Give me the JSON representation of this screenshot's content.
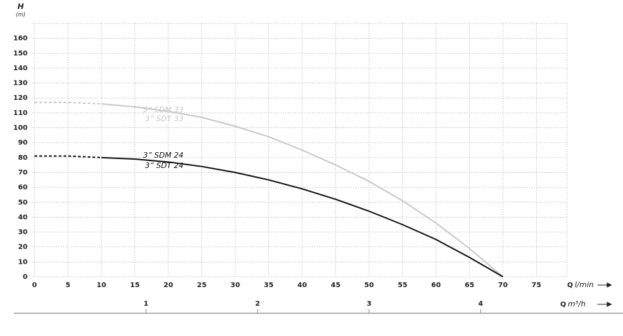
{
  "chart_data": {
    "type": "line",
    "y_label": {
      "symbol": "H",
      "unit": "(m)"
    },
    "x_label": {
      "symbol": "Q",
      "unit": "l/min"
    },
    "x2_label": {
      "symbol": "Q",
      "unit": "m³/h"
    },
    "x": [
      0,
      5,
      10,
      15,
      20,
      25,
      30,
      35,
      40,
      45,
      50,
      55,
      60,
      65,
      70
    ],
    "series": [
      {
        "name": "3” SDM 33",
        "name2": "3” SDT 33",
        "color": "#c8c8c8",
        "dashed_to": 10,
        "values": [
          117,
          117,
          116,
          114,
          111,
          107,
          101,
          94,
          85,
          75,
          64,
          51,
          36,
          19,
          0
        ]
      },
      {
        "name": "3” SDM 24",
        "name2": "3” SDT 24",
        "color": "#111111",
        "dashed_to": 10,
        "values": [
          81,
          81,
          80,
          79,
          77,
          74,
          70,
          65,
          59,
          52,
          44,
          35,
          25,
          13,
          0
        ]
      }
    ],
    "xlim": [
      0,
      80
    ],
    "xticks": [
      0,
      5,
      10,
      15,
      20,
      25,
      30,
      35,
      40,
      45,
      50,
      55,
      60,
      65,
      70,
      75
    ],
    "x2lim": [
      0,
      4.8
    ],
    "x2ticks": [
      1,
      2,
      3,
      4
    ],
    "ylim": [
      0,
      170
    ],
    "yticks": [
      0,
      10,
      20,
      30,
      40,
      50,
      60,
      70,
      80,
      90,
      100,
      110,
      120,
      130,
      140,
      150,
      160
    ],
    "grid": true
  }
}
